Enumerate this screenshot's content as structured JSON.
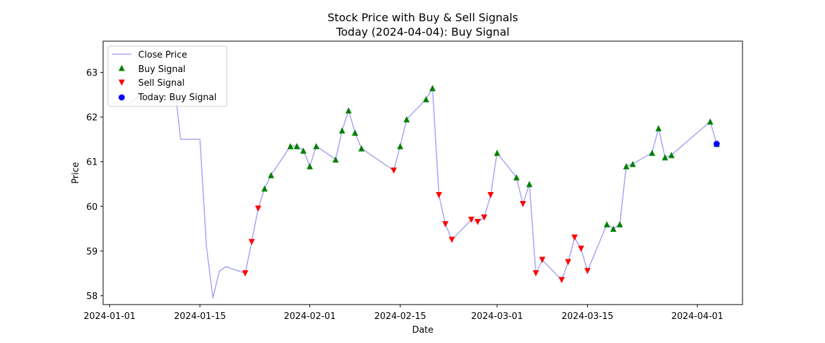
{
  "chart_data": {
    "type": "line",
    "title": "Stock Price with Buy & Sell Signals",
    "subtitle": "Today (2024-04-04): Buy Signal",
    "xlabel": "Date",
    "ylabel": "Price",
    "xlim": [
      "2023-12-31",
      "2024-04-08"
    ],
    "ylim": [
      57.8,
      63.7
    ],
    "x_ticks": [
      "2024-01-01",
      "2024-01-15",
      "2024-02-01",
      "2024-02-15",
      "2024-03-01",
      "2024-03-15",
      "2024-04-01"
    ],
    "y_ticks": [
      58,
      59,
      60,
      61,
      62,
      63
    ],
    "grid": false,
    "legend_position": "top-left",
    "colors": {
      "close": "#aaaaf5",
      "buy": "#008000",
      "sell": "#ff0000",
      "today": "#0000ff"
    },
    "series": [
      {
        "name": "Close Price",
        "kind": "line",
        "points": [
          [
            "2024-01-04",
            62.3
          ],
          [
            "2024-01-05",
            62.4
          ],
          [
            "2024-01-08",
            62.9
          ],
          [
            "2024-01-09",
            63.1
          ],
          [
            "2024-01-10",
            63.1
          ],
          [
            "2024-01-11",
            62.8
          ],
          [
            "2024-01-12",
            61.5
          ],
          [
            "2024-01-15",
            61.5
          ],
          [
            "2024-01-16",
            59.1
          ],
          [
            "2024-01-17",
            57.95
          ],
          [
            "2024-01-18",
            58.55
          ],
          [
            "2024-01-19",
            58.65
          ],
          [
            "2024-01-22",
            58.5
          ],
          [
            "2024-01-23",
            59.2
          ],
          [
            "2024-01-24",
            59.95
          ],
          [
            "2024-01-25",
            60.4
          ],
          [
            "2024-01-26",
            60.7
          ],
          [
            "2024-01-29",
            61.35
          ],
          [
            "2024-01-30",
            61.35
          ],
          [
            "2024-01-31",
            61.25
          ],
          [
            "2024-02-01",
            60.9
          ],
          [
            "2024-02-02",
            61.35
          ],
          [
            "2024-02-05",
            61.05
          ],
          [
            "2024-02-06",
            61.7
          ],
          [
            "2024-02-07",
            62.15
          ],
          [
            "2024-02-08",
            61.65
          ],
          [
            "2024-02-09",
            61.3
          ],
          [
            "2024-02-14",
            60.8
          ],
          [
            "2024-02-15",
            61.35
          ],
          [
            "2024-02-16",
            61.95
          ],
          [
            "2024-02-19",
            62.4
          ],
          [
            "2024-02-20",
            62.65
          ],
          [
            "2024-02-21",
            60.25
          ],
          [
            "2024-02-22",
            59.6
          ],
          [
            "2024-02-23",
            59.25
          ],
          [
            "2024-02-26",
            59.7
          ],
          [
            "2024-02-27",
            59.65
          ],
          [
            "2024-02-28",
            59.75
          ],
          [
            "2024-02-29",
            60.25
          ],
          [
            "2024-03-01",
            61.2
          ],
          [
            "2024-03-04",
            60.65
          ],
          [
            "2024-03-05",
            60.05
          ],
          [
            "2024-03-06",
            60.5
          ],
          [
            "2024-03-07",
            58.5
          ],
          [
            "2024-03-08",
            58.8
          ],
          [
            "2024-03-11",
            58.35
          ],
          [
            "2024-03-12",
            58.75
          ],
          [
            "2024-03-13",
            59.3
          ],
          [
            "2024-03-14",
            59.05
          ],
          [
            "2024-03-15",
            58.55
          ],
          [
            "2024-03-18",
            59.6
          ],
          [
            "2024-03-19",
            59.5
          ],
          [
            "2024-03-20",
            59.6
          ],
          [
            "2024-03-21",
            60.9
          ],
          [
            "2024-03-22",
            60.95
          ],
          [
            "2024-03-25",
            61.2
          ],
          [
            "2024-03-26",
            61.75
          ],
          [
            "2024-03-27",
            61.1
          ],
          [
            "2024-03-28",
            61.15
          ],
          [
            "2024-04-03",
            61.9
          ],
          [
            "2024-04-04",
            61.4
          ]
        ]
      },
      {
        "name": "Buy Signal",
        "kind": "marker-up",
        "points": [
          [
            "2024-01-25",
            60.4
          ],
          [
            "2024-01-26",
            60.7
          ],
          [
            "2024-01-29",
            61.35
          ],
          [
            "2024-01-30",
            61.35
          ],
          [
            "2024-01-31",
            61.25
          ],
          [
            "2024-02-01",
            60.9
          ],
          [
            "2024-02-02",
            61.35
          ],
          [
            "2024-02-05",
            61.05
          ],
          [
            "2024-02-06",
            61.7
          ],
          [
            "2024-02-07",
            62.15
          ],
          [
            "2024-02-08",
            61.65
          ],
          [
            "2024-02-09",
            61.3
          ],
          [
            "2024-02-15",
            61.35
          ],
          [
            "2024-02-16",
            61.95
          ],
          [
            "2024-02-19",
            62.4
          ],
          [
            "2024-02-20",
            62.65
          ],
          [
            "2024-03-01",
            61.2
          ],
          [
            "2024-03-04",
            60.65
          ],
          [
            "2024-03-06",
            60.5
          ],
          [
            "2024-03-18",
            59.6
          ],
          [
            "2024-03-19",
            59.5
          ],
          [
            "2024-03-20",
            59.6
          ],
          [
            "2024-03-21",
            60.9
          ],
          [
            "2024-03-22",
            60.95
          ],
          [
            "2024-03-25",
            61.2
          ],
          [
            "2024-03-26",
            61.75
          ],
          [
            "2024-03-27",
            61.1
          ],
          [
            "2024-03-28",
            61.15
          ],
          [
            "2024-04-03",
            61.9
          ],
          [
            "2024-04-04",
            61.4
          ]
        ]
      },
      {
        "name": "Sell Signal",
        "kind": "marker-down",
        "points": [
          [
            "2024-01-22",
            58.5
          ],
          [
            "2024-01-23",
            59.2
          ],
          [
            "2024-01-24",
            59.95
          ],
          [
            "2024-02-14",
            60.8
          ],
          [
            "2024-02-21",
            60.25
          ],
          [
            "2024-02-22",
            59.6
          ],
          [
            "2024-02-23",
            59.25
          ],
          [
            "2024-02-26",
            59.7
          ],
          [
            "2024-02-27",
            59.65
          ],
          [
            "2024-02-28",
            59.75
          ],
          [
            "2024-02-29",
            60.25
          ],
          [
            "2024-03-05",
            60.05
          ],
          [
            "2024-03-07",
            58.5
          ],
          [
            "2024-03-08",
            58.8
          ],
          [
            "2024-03-11",
            58.35
          ],
          [
            "2024-03-12",
            58.75
          ],
          [
            "2024-03-13",
            59.3
          ],
          [
            "2024-03-14",
            59.05
          ],
          [
            "2024-03-15",
            58.55
          ]
        ]
      },
      {
        "name": "Today: Buy Signal",
        "kind": "marker-circle",
        "points": [
          [
            "2024-04-04",
            61.4
          ]
        ]
      }
    ]
  }
}
